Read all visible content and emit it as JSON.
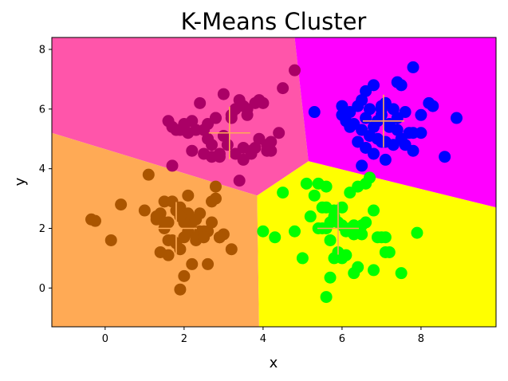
{
  "chart_data": {
    "type": "scatter",
    "title": "K-Means Cluster",
    "xlabel": "x",
    "ylabel": "y",
    "xlim": [
      -1.35,
      9.9
    ],
    "ylim": [
      -1.3,
      8.4
    ],
    "xticks": [
      0,
      2,
      4,
      6,
      8
    ],
    "yticks": [
      0,
      2,
      4,
      6,
      8
    ],
    "grid": false,
    "regions": [
      {
        "color": "#ff55aa",
        "polygon": [
          [
            -1.35,
            8.4
          ],
          [
            4.8,
            8.4
          ],
          [
            5.15,
            4.25
          ],
          [
            3.85,
            3.1
          ],
          [
            -1.35,
            5.2
          ]
        ]
      },
      {
        "color": "#ff00ff",
        "polygon": [
          [
            4.8,
            8.4
          ],
          [
            9.9,
            8.4
          ],
          [
            9.9,
            2.7
          ],
          [
            5.15,
            4.25
          ]
        ]
      },
      {
        "color": "#ffaa55",
        "polygon": [
          [
            -1.35,
            5.2
          ],
          [
            3.85,
            3.1
          ],
          [
            3.9,
            -1.3
          ],
          [
            -1.35,
            -1.3
          ]
        ]
      },
      {
        "color": "#ffff00",
        "polygon": [
          [
            3.85,
            3.1
          ],
          [
            5.15,
            4.25
          ],
          [
            9.9,
            2.7
          ],
          [
            9.9,
            -1.3
          ],
          [
            3.9,
            -1.3
          ]
        ]
      }
    ],
    "series": [
      {
        "color": "#aa0066",
        "x": [
          1.7,
          1.9,
          1.6,
          2.0,
          2.2,
          2.4,
          2.6,
          2.8,
          2.5,
          2.7,
          2.9,
          3.0,
          3.2,
          3.3,
          3.5,
          3.6,
          3.4,
          3.8,
          3.9,
          4.0,
          4.2,
          4.4,
          4.1,
          3.7,
          3.5,
          3.3,
          3.1,
          2.9,
          2.7,
          2.5,
          2.3,
          2.0,
          1.8,
          2.1,
          3.0,
          3.6,
          3.8,
          4.2,
          4.5,
          4.8,
          3.2,
          3.4,
          2.6,
          2.8,
          3.9,
          4.1,
          3.7,
          3.5,
          2.2,
          1.7
        ],
        "y": [
          5.4,
          5.3,
          5.6,
          5.5,
          5.6,
          6.2,
          5.5,
          5.7,
          4.5,
          4.4,
          4.5,
          5.1,
          5.8,
          6.0,
          6.1,
          6.0,
          6.3,
          6.2,
          6.3,
          6.2,
          4.9,
          5.2,
          4.6,
          4.6,
          4.3,
          4.5,
          4.8,
          4.4,
          4.8,
          5.3,
          5.3,
          5.4,
          5.3,
          5.2,
          6.5,
          5.8,
          4.7,
          4.6,
          6.7,
          7.3,
          5.7,
          3.6,
          5.0,
          5.7,
          5.0,
          4.8,
          4.5,
          4.7,
          4.6,
          4.1
        ]
      },
      {
        "color": "#0000ff",
        "x": [
          6.0,
          6.2,
          6.4,
          6.5,
          6.6,
          6.8,
          7.0,
          7.1,
          7.3,
          7.4,
          7.5,
          7.6,
          7.8,
          8.0,
          8.2,
          8.3,
          6.3,
          6.5,
          6.7,
          6.9,
          7.1,
          7.3,
          7.6,
          7.8,
          6.1,
          6.6,
          6.8,
          7.0,
          7.2,
          7.5,
          7.7,
          5.3,
          6.2,
          6.4,
          6.6,
          6.8,
          7.0,
          7.2,
          7.4,
          7.8,
          8.0,
          8.6,
          8.9,
          6.0,
          6.5,
          7.0,
          7.4,
          6.7,
          6.9,
          7.1
        ],
        "y": [
          6.1,
          5.9,
          6.1,
          6.3,
          6.6,
          6.8,
          6.1,
          6.2,
          6.0,
          6.9,
          6.8,
          5.9,
          7.4,
          5.2,
          6.2,
          6.1,
          5.5,
          5.3,
          5.1,
          5.0,
          4.9,
          4.8,
          4.8,
          5.2,
          5.6,
          4.7,
          4.5,
          4.9,
          5.4,
          5.0,
          5.2,
          5.9,
          5.4,
          4.9,
          5.7,
          5.4,
          6.0,
          5.5,
          5.3,
          4.6,
          5.8,
          4.4,
          5.7,
          5.8,
          4.1,
          5.8,
          5.7,
          6.0,
          5.6,
          4.3
        ]
      },
      {
        "color": "#aa5500",
        "x": [
          -0.35,
          -0.25,
          0.15,
          0.4,
          1.0,
          1.1,
          1.3,
          1.4,
          1.5,
          1.6,
          1.7,
          1.8,
          1.9,
          2.0,
          2.1,
          2.2,
          2.3,
          2.4,
          2.5,
          2.6,
          2.7,
          2.8,
          2.9,
          3.0,
          3.2,
          1.4,
          1.6,
          1.8,
          2.0,
          2.2,
          2.4,
          2.6,
          2.8,
          1.5,
          1.7,
          1.9,
          2.1,
          2.3,
          2.5,
          2.7,
          1.3,
          1.5,
          1.9,
          2.1,
          2.3,
          2.5,
          2.9,
          2.0,
          1.6,
          1.9
        ],
        "y": [
          2.3,
          2.25,
          1.6,
          2.8,
          2.6,
          3.8,
          2.3,
          2.5,
          2.9,
          1.1,
          2.9,
          1.5,
          2.7,
          1.7,
          2.5,
          2.2,
          1.6,
          1.9,
          1.8,
          0.8,
          2.9,
          3.4,
          1.7,
          1.8,
          1.3,
          1.2,
          2.2,
          2.6,
          2.2,
          0.8,
          2.5,
          1.9,
          3.0,
          2.0,
          1.6,
          2.4,
          1.9,
          1.7,
          1.9,
          2.2,
          2.4,
          2.2,
          1.3,
          3.1,
          2.3,
          1.7,
          1.7,
          0.4,
          1.6,
          -0.05
        ]
      },
      {
        "color": "#00ff00",
        "x": [
          4.0,
          4.3,
          4.5,
          4.8,
          5.0,
          5.2,
          5.3,
          5.4,
          5.5,
          5.6,
          5.7,
          5.8,
          5.9,
          6.0,
          6.1,
          6.2,
          6.3,
          6.4,
          6.5,
          6.6,
          6.7,
          6.8,
          6.9,
          7.0,
          7.1,
          7.2,
          7.5,
          7.9,
          5.5,
          5.6,
          5.7,
          5.8,
          5.9,
          6.0,
          6.1,
          6.2,
          6.3,
          6.4,
          6.5,
          5.1,
          5.4,
          5.6,
          5.8,
          6.0,
          6.6,
          6.8,
          7.1,
          5.6,
          5.7,
          6.3
        ],
        "y": [
          1.9,
          1.7,
          3.2,
          1.9,
          1.0,
          2.4,
          3.1,
          3.5,
          2.7,
          3.4,
          1.6,
          2.6,
          2.2,
          2.7,
          1.1,
          3.2,
          1.8,
          3.4,
          2.1,
          3.5,
          3.7,
          2.6,
          1.7,
          1.7,
          1.7,
          1.2,
          0.5,
          1.85,
          2.0,
          2.0,
          2.2,
          1.0,
          1.2,
          2.1,
          1.9,
          2.0,
          0.5,
          0.7,
          1.8,
          3.5,
          2.0,
          2.7,
          2.4,
          1.0,
          2.2,
          0.6,
          1.2,
          -0.3,
          0.35,
          2.1
        ]
      }
    ],
    "centroids": [
      {
        "x": 3.15,
        "y": 5.2,
        "color": "#ffaa55"
      },
      {
        "x": 7.05,
        "y": 5.6,
        "color": "#ffaa55"
      },
      {
        "x": 1.8,
        "y": 2.0,
        "color": "#ffaa55"
      },
      {
        "x": 5.9,
        "y": 2.0,
        "color": "#ffaa55"
      }
    ]
  }
}
